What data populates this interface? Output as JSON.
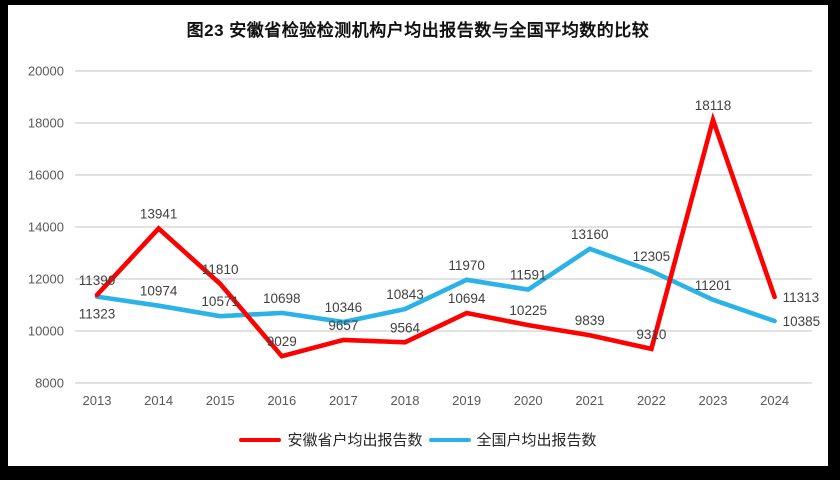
{
  "chart_data": {
    "type": "line",
    "title": "图23 安徽省检验检测机构户均出报告数与全国平均数的比较",
    "categories": [
      "2013",
      "2014",
      "2015",
      "2016",
      "2017",
      "2018",
      "2019",
      "2020",
      "2021",
      "2022",
      "2023",
      "2024"
    ],
    "series": [
      {
        "name": "安徽省户均出报告数",
        "color": "#FE0000",
        "values": [
          11390,
          13941,
          11810,
          9029,
          9657,
          9564,
          10694,
          10225,
          9839,
          9310,
          18118,
          11313
        ],
        "label_pos": [
          "above",
          "above",
          "above",
          "above",
          "above",
          "above",
          "above",
          "above",
          "above",
          "above",
          "above",
          "right"
        ]
      },
      {
        "name": "全国户均出报告数",
        "color": "#2BB3E8",
        "values": [
          11323,
          10974,
          10571,
          10698,
          10346,
          10843,
          11970,
          11591,
          13160,
          12305,
          11201,
          10385
        ],
        "label_pos": [
          "below",
          "above",
          "above",
          "above",
          "above",
          "above",
          "above",
          "above",
          "above",
          "above",
          "above",
          "right"
        ]
      }
    ],
    "ylim": [
      8000,
      20000
    ],
    "ytick_step": 2000,
    "ytick_labels": [
      "8000",
      "10000",
      "12000",
      "14000",
      "16000",
      "18000",
      "20000"
    ],
    "grid": true,
    "legend_position": "bottom",
    "xlabel": "",
    "ylabel": "",
    "colors": {
      "gridline": "#D9D9D9",
      "tick_text": "#595959",
      "data_label_text": "#404040"
    }
  }
}
